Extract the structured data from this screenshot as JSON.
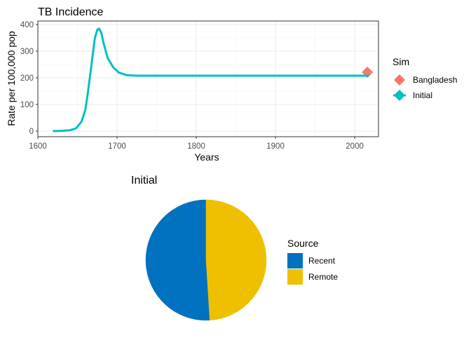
{
  "chart_data": [
    {
      "type": "line",
      "title": "TB Incidence",
      "xlabel": "Years",
      "ylabel": "Rate per 100,000 pop",
      "xlim": [
        1600,
        2030
      ],
      "ylim": [
        0,
        400
      ],
      "x_ticks": [
        "1600",
        "1700",
        "1800",
        "1900",
        "2000"
      ],
      "y_ticks": [
        "0",
        "100",
        "200",
        "300",
        "400"
      ],
      "grid": true,
      "legend_title": "Sim",
      "legend_position": "right",
      "series": [
        {
          "name": "Bangladesh",
          "color": "#F8766D",
          "marker": "diamond",
          "points": [
            [
              2016,
              221
            ]
          ]
        },
        {
          "name": "Initial",
          "color": "#00BFC4",
          "marker": "line",
          "points": [
            [
              1620,
              0
            ],
            [
              1630,
              1
            ],
            [
              1640,
              3
            ],
            [
              1648,
              10
            ],
            [
              1655,
              35
            ],
            [
              1660,
              80
            ],
            [
              1663,
              140
            ],
            [
              1666,
              210
            ],
            [
              1669,
              280
            ],
            [
              1672,
              350
            ],
            [
              1675,
              380
            ],
            [
              1677,
              385
            ],
            [
              1680,
              370
            ],
            [
              1683,
              330
            ],
            [
              1688,
              275
            ],
            [
              1695,
              240
            ],
            [
              1702,
              220
            ],
            [
              1712,
              210
            ],
            [
              1725,
              208
            ],
            [
              2017,
              208
            ]
          ]
        }
      ]
    },
    {
      "type": "pie",
      "title": "Initial",
      "legend_title": "Source",
      "legend_position": "right",
      "slices": [
        {
          "label": "Recent",
          "value": 51,
          "color": "#0072BF"
        },
        {
          "label": "Remote",
          "value": 49,
          "color": "#EFC000"
        }
      ]
    }
  ]
}
